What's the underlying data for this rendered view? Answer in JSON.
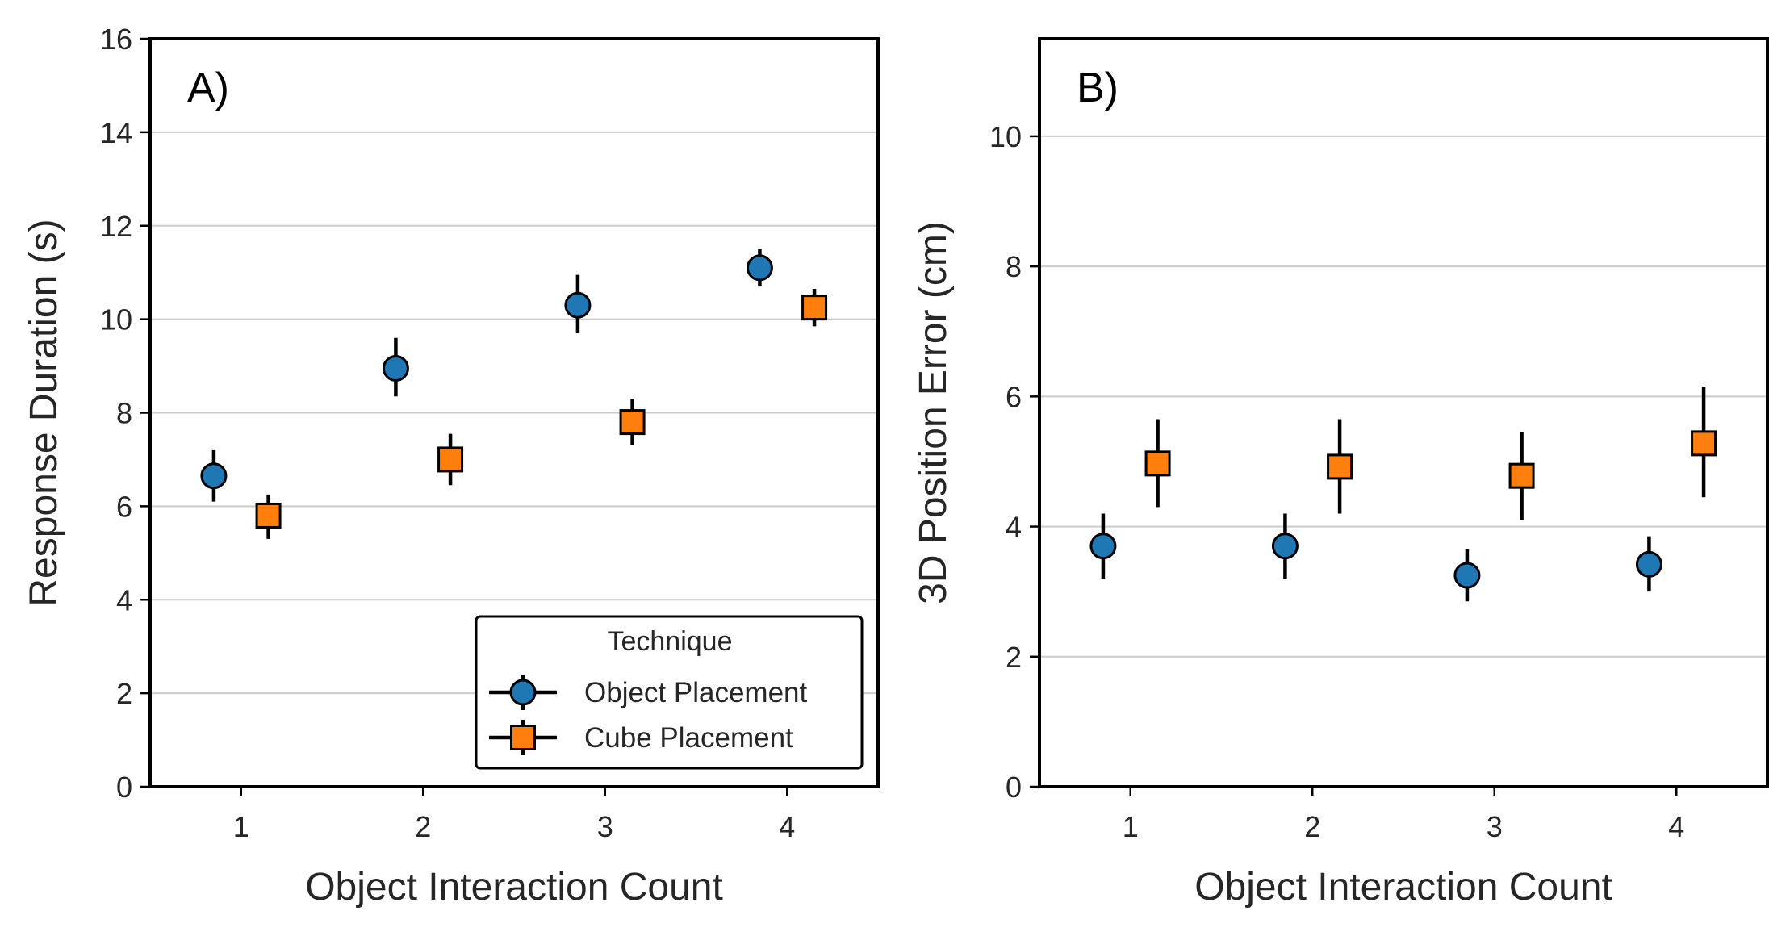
{
  "chart_data": [
    {
      "type": "scatter",
      "panel_label": "A)",
      "xlabel": "Object Interaction Count",
      "ylabel": "Response Duration (s)",
      "categories": [
        "1",
        "2",
        "3",
        "4"
      ],
      "xlim": [
        0.5,
        4.5
      ],
      "ylim": [
        0,
        16
      ],
      "yticks": [
        0,
        2,
        4,
        6,
        8,
        10,
        12,
        14,
        16
      ],
      "grid": "horizontal",
      "legend": {
        "title": "Technique",
        "placement": "lower-right",
        "entries": [
          "Object Placement",
          "Cube Placement"
        ]
      },
      "series": [
        {
          "name": "Object Placement",
          "marker": "circle",
          "color": "#1f77b4",
          "x": [
            0.85,
            1.85,
            2.85,
            3.85
          ],
          "values": [
            6.65,
            8.95,
            10.3,
            11.1
          ],
          "error_low": [
            6.1,
            8.35,
            9.7,
            10.7
          ],
          "error_high": [
            7.2,
            9.6,
            10.95,
            11.5
          ]
        },
        {
          "name": "Cube Placement",
          "marker": "square",
          "color": "#ff7f0e",
          "x": [
            1.15,
            2.15,
            3.15,
            4.15
          ],
          "values": [
            5.8,
            7.0,
            7.8,
            10.25
          ],
          "error_low": [
            5.3,
            6.45,
            7.3,
            9.85
          ],
          "error_high": [
            6.25,
            7.55,
            8.3,
            10.65
          ]
        }
      ]
    },
    {
      "type": "scatter",
      "panel_label": "B)",
      "xlabel": "Object Interaction Count",
      "ylabel": "3D Position Error (cm)",
      "categories": [
        "1",
        "2",
        "3",
        "4"
      ],
      "xlim": [
        0.5,
        4.5
      ],
      "ylim": [
        0,
        11.5
      ],
      "yticks": [
        0,
        2,
        4,
        6,
        8,
        10
      ],
      "grid": "horizontal",
      "series": [
        {
          "name": "Object Placement",
          "marker": "circle",
          "color": "#1f77b4",
          "x": [
            0.85,
            1.85,
            2.85,
            3.85
          ],
          "values": [
            3.7,
            3.7,
            3.25,
            3.42
          ],
          "error_low": [
            3.2,
            3.2,
            2.85,
            3.0
          ],
          "error_high": [
            4.2,
            4.2,
            3.65,
            3.85
          ]
        },
        {
          "name": "Cube Placement",
          "marker": "square",
          "color": "#ff7f0e",
          "x": [
            1.15,
            2.15,
            3.15,
            4.15
          ],
          "values": [
            4.97,
            4.92,
            4.78,
            5.28
          ],
          "error_low": [
            4.3,
            4.2,
            4.1,
            4.45
          ],
          "error_high": [
            5.65,
            5.65,
            5.45,
            6.15
          ]
        }
      ]
    }
  ]
}
